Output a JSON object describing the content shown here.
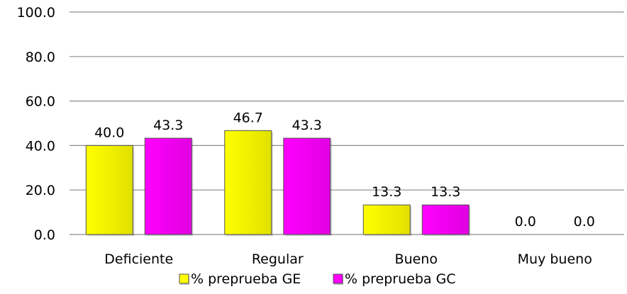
{
  "chart_data": {
    "type": "bar",
    "title": "",
    "xlabel": "",
    "ylabel": "",
    "categories": [
      "Deficiente",
      "Regular",
      "Bueno",
      "Muy bueno"
    ],
    "series": [
      {
        "name": "% preprueba GE",
        "values": [
          40.0,
          46.7,
          13.3,
          0.0
        ],
        "color": "#ffff00",
        "labels": [
          "40.0",
          "46.7",
          "13.3",
          "0.0"
        ]
      },
      {
        "name": "% preprueba GC",
        "values": [
          43.3,
          43.3,
          13.3,
          0.0
        ],
        "color": "#ff00ff",
        "labels": [
          "43.3",
          "43.3",
          "13.3",
          "0.0"
        ]
      }
    ],
    "ylim": [
      0,
      100
    ],
    "yticks": [
      "0.0",
      "20.0",
      "40.0",
      "60.0",
      "80.0",
      "100.0"
    ],
    "grid": true,
    "legend": "bottom"
  }
}
